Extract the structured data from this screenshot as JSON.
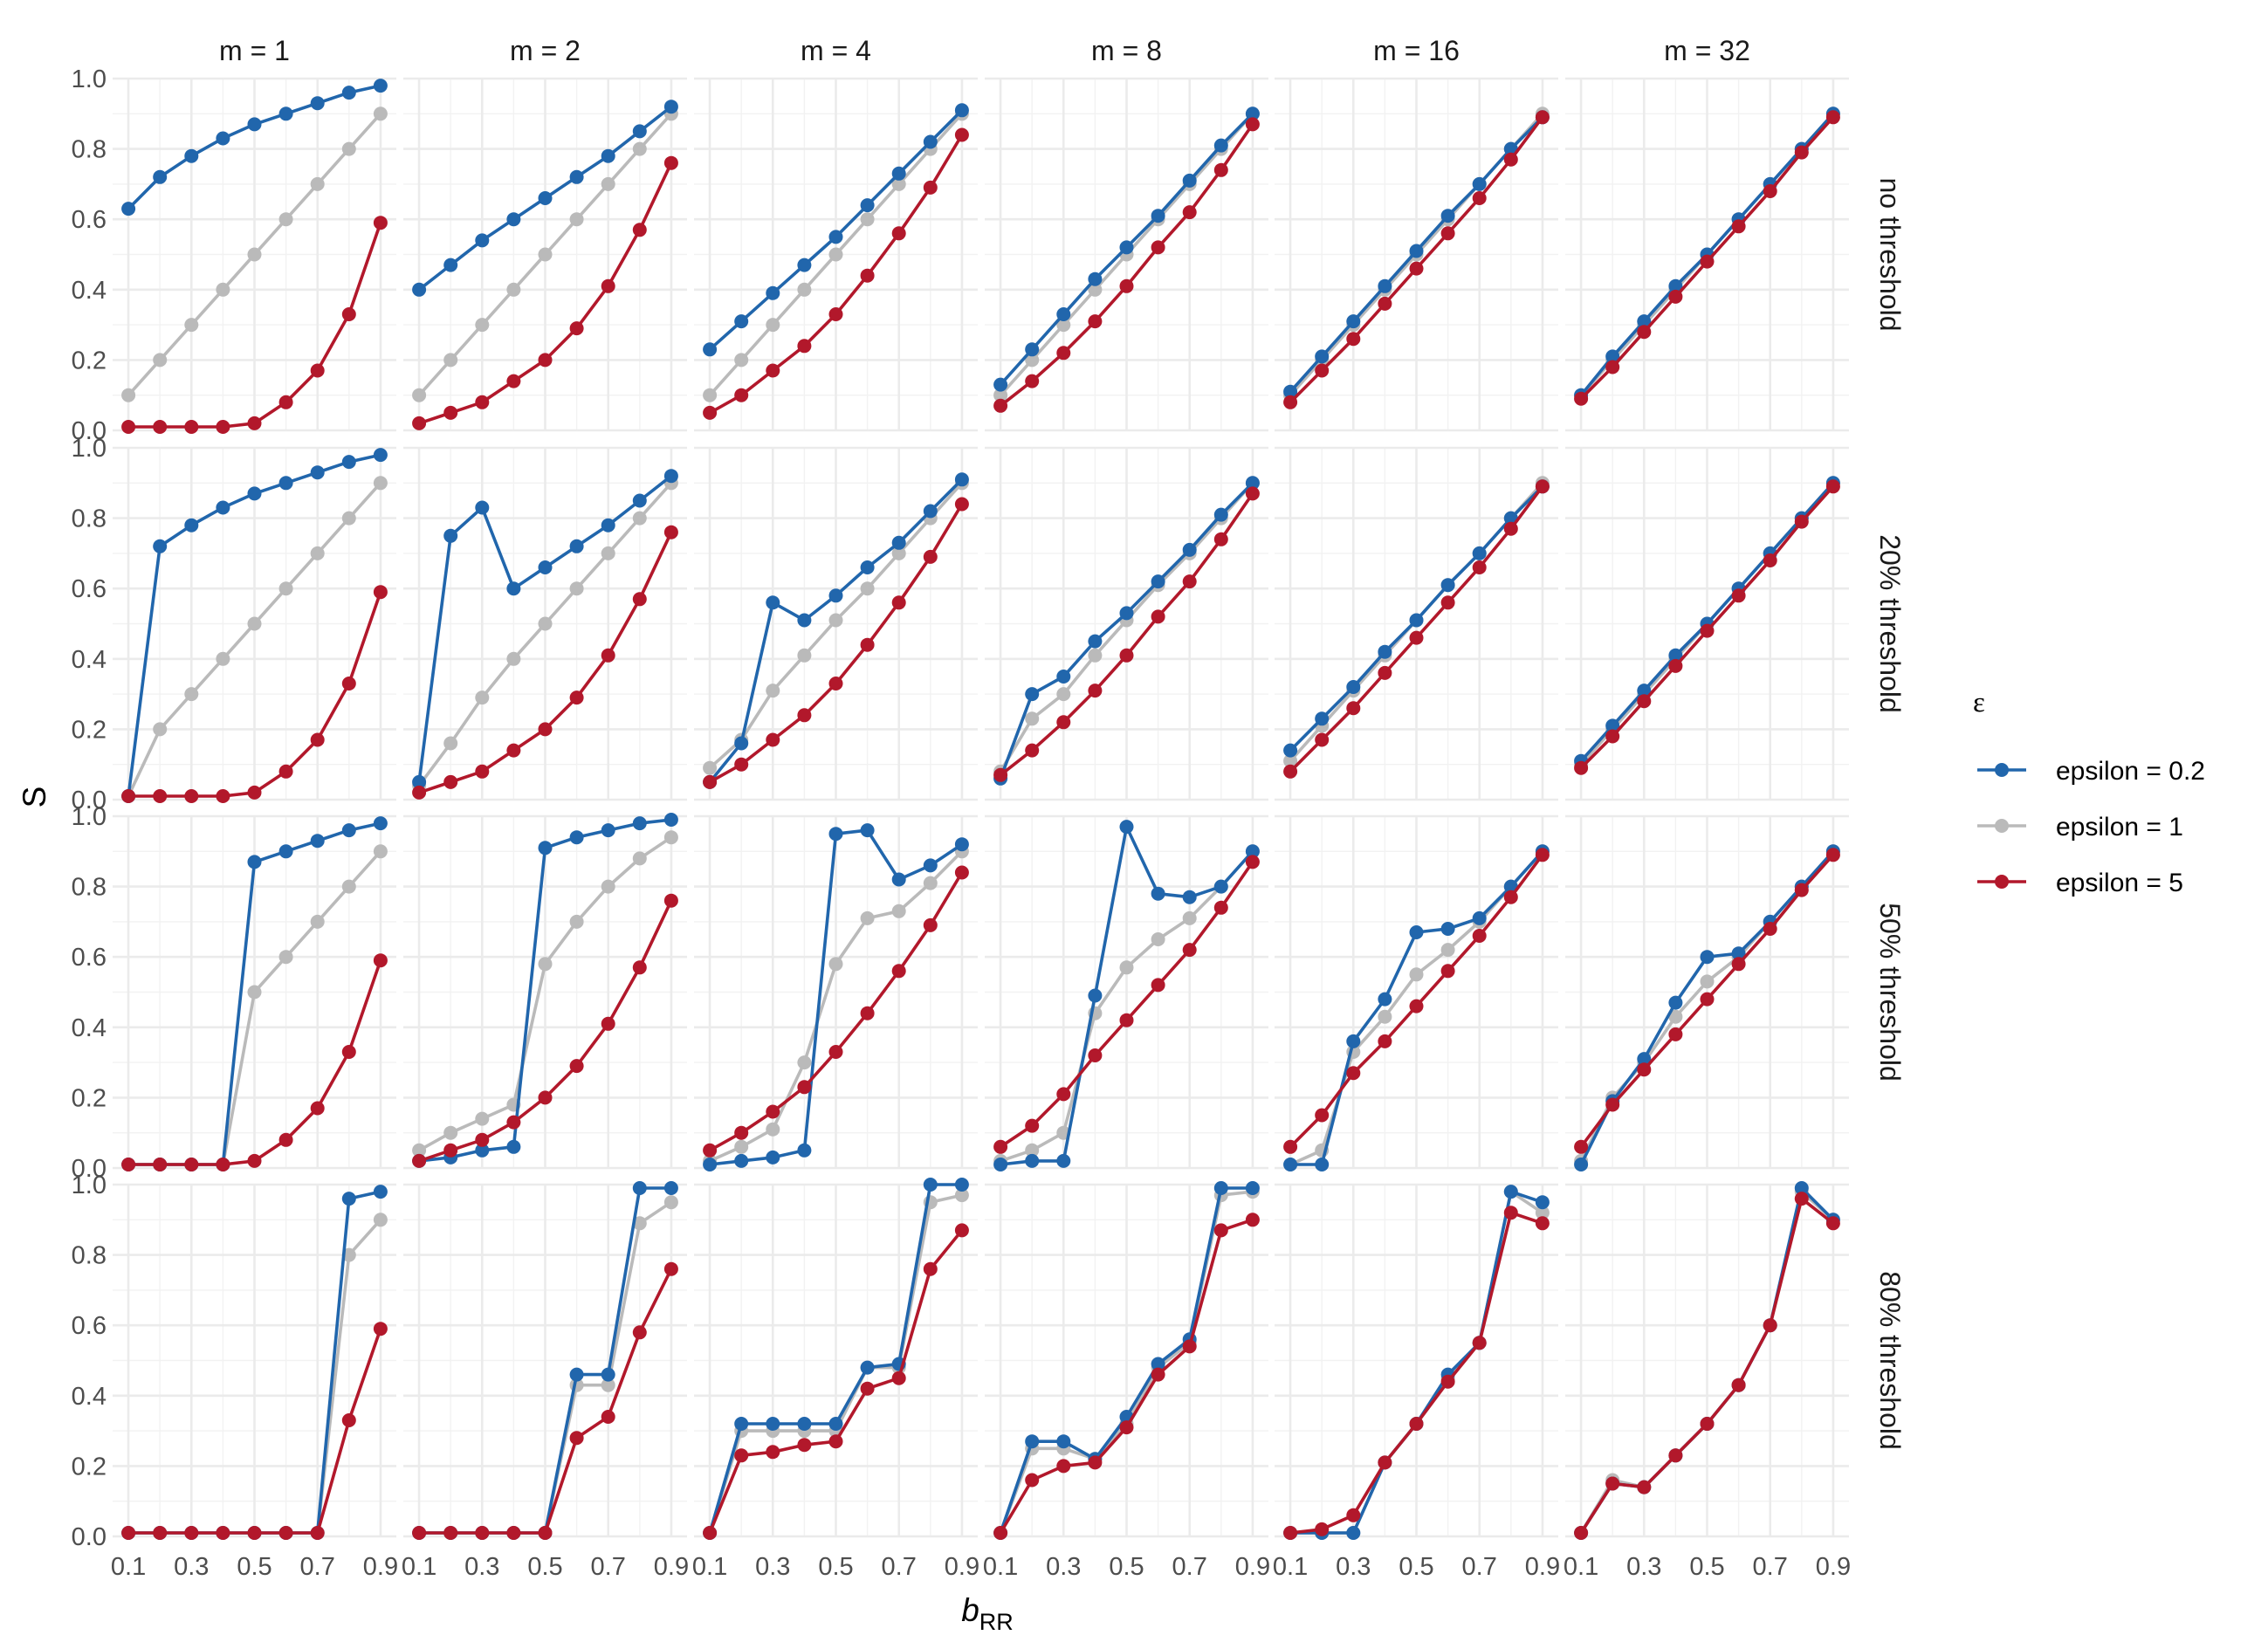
{
  "chart_data": {
    "type": "line",
    "title": "",
    "xlabel": "b",
    "xlabel_subscript": "RR",
    "ylabel": "S",
    "x": [
      0.1,
      0.2,
      0.3,
      0.4,
      0.5,
      0.6,
      0.7,
      0.8,
      0.9
    ],
    "x_ticks": [
      0.1,
      0.3,
      0.5,
      0.7,
      0.9
    ],
    "x_tick_labels": [
      "0.1",
      "0.3",
      "0.5",
      "0.7",
      "0.9"
    ],
    "xlim": [
      0.05,
      0.95
    ],
    "ylim": [
      0,
      1
    ],
    "y_ticks": [
      0,
      0.2,
      0.4,
      0.6,
      0.8,
      1.0
    ],
    "y_tick_labels": [
      "0.0",
      "0.2",
      "0.4",
      "0.6",
      "0.8",
      "1.0"
    ],
    "grid": true,
    "legend": {
      "title": "ε",
      "position": "right",
      "entries": [
        "epsilon = 0.2",
        "epsilon = 1",
        "epsilon = 5"
      ]
    },
    "series_colors": [
      "#2166ac",
      "#bababa",
      "#b2182b"
    ],
    "column_labels": [
      "m = 1",
      "m = 2",
      "m = 4",
      "m = 8",
      "m = 16",
      "m = 32"
    ],
    "row_labels": [
      "no threshold",
      "20% threshold",
      "50% threshold",
      "80% threshold"
    ],
    "panels": [
      [
        {
          "series": [
            [
              0.63,
              0.72,
              0.78,
              0.83,
              0.87,
              0.9,
              0.93,
              0.96,
              0.98
            ],
            [
              0.1,
              0.2,
              0.3,
              0.4,
              0.5,
              0.6,
              0.7,
              0.8,
              0.9
            ],
            [
              0.01,
              0.01,
              0.01,
              0.01,
              0.02,
              0.08,
              0.17,
              0.33,
              0.59
            ]
          ]
        },
        {
          "series": [
            [
              0.4,
              0.47,
              0.54,
              0.6,
              0.66,
              0.72,
              0.78,
              0.85,
              0.92
            ],
            [
              0.1,
              0.2,
              0.3,
              0.4,
              0.5,
              0.6,
              0.7,
              0.8,
              0.9
            ],
            [
              0.02,
              0.05,
              0.08,
              0.14,
              0.2,
              0.29,
              0.41,
              0.57,
              0.76
            ]
          ]
        },
        {
          "series": [
            [
              0.23,
              0.31,
              0.39,
              0.47,
              0.55,
              0.64,
              0.73,
              0.82,
              0.91
            ],
            [
              0.1,
              0.2,
              0.3,
              0.4,
              0.5,
              0.6,
              0.7,
              0.8,
              0.9
            ],
            [
              0.05,
              0.1,
              0.17,
              0.24,
              0.33,
              0.44,
              0.56,
              0.69,
              0.84
            ]
          ]
        },
        {
          "series": [
            [
              0.13,
              0.23,
              0.33,
              0.43,
              0.52,
              0.61,
              0.71,
              0.81,
              0.9
            ],
            [
              0.1,
              0.2,
              0.3,
              0.4,
              0.5,
              0.6,
              0.7,
              0.8,
              0.9
            ],
            [
              0.07,
              0.14,
              0.22,
              0.31,
              0.41,
              0.52,
              0.62,
              0.74,
              0.87
            ]
          ]
        },
        {
          "series": [
            [
              0.11,
              0.21,
              0.31,
              0.41,
              0.51,
              0.61,
              0.7,
              0.8,
              0.89
            ],
            [
              0.1,
              0.2,
              0.3,
              0.4,
              0.5,
              0.6,
              0.7,
              0.8,
              0.9
            ],
            [
              0.08,
              0.17,
              0.26,
              0.36,
              0.46,
              0.56,
              0.66,
              0.77,
              0.89
            ]
          ]
        },
        {
          "series": [
            [
              0.1,
              0.21,
              0.31,
              0.41,
              0.5,
              0.6,
              0.7,
              0.8,
              0.9
            ],
            [
              0.1,
              0.2,
              0.3,
              0.4,
              0.5,
              0.6,
              0.7,
              0.8,
              0.9
            ],
            [
              0.09,
              0.18,
              0.28,
              0.38,
              0.48,
              0.58,
              0.68,
              0.79,
              0.89
            ]
          ]
        }
      ],
      [
        {
          "series": [
            [
              0.01,
              0.72,
              0.78,
              0.83,
              0.87,
              0.9,
              0.93,
              0.96,
              0.98
            ],
            [
              0.01,
              0.2,
              0.3,
              0.4,
              0.5,
              0.6,
              0.7,
              0.8,
              0.9
            ],
            [
              0.01,
              0.01,
              0.01,
              0.01,
              0.02,
              0.08,
              0.17,
              0.33,
              0.59
            ]
          ]
        },
        {
          "series": [
            [
              0.05,
              0.75,
              0.83,
              0.6,
              0.66,
              0.72,
              0.78,
              0.85,
              0.92
            ],
            [
              0.04,
              0.16,
              0.29,
              0.4,
              0.5,
              0.6,
              0.7,
              0.8,
              0.9
            ],
            [
              0.02,
              0.05,
              0.08,
              0.14,
              0.2,
              0.29,
              0.41,
              0.57,
              0.76
            ]
          ]
        },
        {
          "series": [
            [
              0.05,
              0.16,
              0.56,
              0.51,
              0.58,
              0.66,
              0.73,
              0.82,
              0.91
            ],
            [
              0.09,
              0.17,
              0.31,
              0.41,
              0.51,
              0.6,
              0.7,
              0.8,
              0.9
            ],
            [
              0.05,
              0.1,
              0.17,
              0.24,
              0.33,
              0.44,
              0.56,
              0.69,
              0.84
            ]
          ]
        },
        {
          "series": [
            [
              0.06,
              0.3,
              0.35,
              0.45,
              0.53,
              0.62,
              0.71,
              0.81,
              0.9
            ],
            [
              0.08,
              0.23,
              0.3,
              0.41,
              0.51,
              0.61,
              0.7,
              0.8,
              0.9
            ],
            [
              0.07,
              0.14,
              0.22,
              0.31,
              0.41,
              0.52,
              0.62,
              0.74,
              0.87
            ]
          ]
        },
        {
          "series": [
            [
              0.14,
              0.23,
              0.32,
              0.42,
              0.51,
              0.61,
              0.7,
              0.8,
              0.89
            ],
            [
              0.11,
              0.21,
              0.31,
              0.41,
              0.51,
              0.61,
              0.7,
              0.8,
              0.9
            ],
            [
              0.08,
              0.17,
              0.26,
              0.36,
              0.46,
              0.56,
              0.66,
              0.77,
              0.89
            ]
          ]
        },
        {
          "series": [
            [
              0.11,
              0.21,
              0.31,
              0.41,
              0.5,
              0.6,
              0.7,
              0.8,
              0.9
            ],
            [
              0.1,
              0.2,
              0.3,
              0.4,
              0.5,
              0.6,
              0.7,
              0.8,
              0.9
            ],
            [
              0.09,
              0.18,
              0.28,
              0.38,
              0.48,
              0.58,
              0.68,
              0.79,
              0.89
            ]
          ]
        }
      ],
      [
        {
          "series": [
            [
              0.01,
              0.01,
              0.01,
              0.01,
              0.87,
              0.9,
              0.93,
              0.96,
              0.98
            ],
            [
              0.01,
              0.01,
              0.01,
              0.01,
              0.5,
              0.6,
              0.7,
              0.8,
              0.9
            ],
            [
              0.01,
              0.01,
              0.01,
              0.01,
              0.02,
              0.08,
              0.17,
              0.33,
              0.59
            ]
          ]
        },
        {
          "series": [
            [
              0.02,
              0.03,
              0.05,
              0.06,
              0.91,
              0.94,
              0.96,
              0.98,
              0.99
            ],
            [
              0.05,
              0.1,
              0.14,
              0.18,
              0.58,
              0.7,
              0.8,
              0.88,
              0.94
            ],
            [
              0.02,
              0.05,
              0.08,
              0.13,
              0.2,
              0.29,
              0.41,
              0.57,
              0.76
            ]
          ]
        },
        {
          "series": [
            [
              0.01,
              0.02,
              0.03,
              0.05,
              0.95,
              0.96,
              0.82,
              0.86,
              0.92
            ],
            [
              0.02,
              0.06,
              0.11,
              0.3,
              0.58,
              0.71,
              0.73,
              0.81,
              0.9
            ],
            [
              0.05,
              0.1,
              0.16,
              0.23,
              0.33,
              0.44,
              0.56,
              0.69,
              0.84
            ]
          ]
        },
        {
          "series": [
            [
              0.01,
              0.02,
              0.02,
              0.49,
              0.97,
              0.78,
              0.77,
              0.8,
              0.9
            ],
            [
              0.02,
              0.05,
              0.1,
              0.44,
              0.57,
              0.65,
              0.71,
              0.8,
              0.9
            ],
            [
              0.06,
              0.12,
              0.21,
              0.32,
              0.42,
              0.52,
              0.62,
              0.74,
              0.87
            ]
          ]
        },
        {
          "series": [
            [
              0.01,
              0.01,
              0.36,
              0.48,
              0.67,
              0.68,
              0.71,
              0.8,
              0.9
            ],
            [
              0.01,
              0.05,
              0.33,
              0.43,
              0.55,
              0.62,
              0.7,
              0.8,
              0.9
            ],
            [
              0.06,
              0.15,
              0.27,
              0.36,
              0.46,
              0.56,
              0.66,
              0.77,
              0.89
            ]
          ]
        },
        {
          "series": [
            [
              0.01,
              0.19,
              0.31,
              0.47,
              0.6,
              0.61,
              0.7,
              0.8,
              0.9
            ],
            [
              0.02,
              0.2,
              0.3,
              0.43,
              0.53,
              0.6,
              0.7,
              0.8,
              0.9
            ],
            [
              0.06,
              0.18,
              0.28,
              0.38,
              0.48,
              0.58,
              0.68,
              0.79,
              0.89
            ]
          ]
        }
      ],
      [
        {
          "series": [
            [
              0.01,
              0.01,
              0.01,
              0.01,
              0.01,
              0.01,
              0.01,
              0.96,
              0.98
            ],
            [
              0.01,
              0.01,
              0.01,
              0.01,
              0.01,
              0.01,
              0.01,
              0.8,
              0.9
            ],
            [
              0.01,
              0.01,
              0.01,
              0.01,
              0.01,
              0.01,
              0.01,
              0.33,
              0.59
            ]
          ]
        },
        {
          "series": [
            [
              0.01,
              0.01,
              0.01,
              0.01,
              0.01,
              0.46,
              0.46,
              0.99,
              0.99
            ],
            [
              0.01,
              0.01,
              0.01,
              0.01,
              0.01,
              0.43,
              0.43,
              0.89,
              0.95
            ],
            [
              0.01,
              0.01,
              0.01,
              0.01,
              0.01,
              0.28,
              0.34,
              0.58,
              0.76
            ]
          ]
        },
        {
          "series": [
            [
              0.01,
              0.32,
              0.32,
              0.32,
              0.32,
              0.48,
              0.49,
              1.0,
              1.0
            ],
            [
              0.01,
              0.3,
              0.3,
              0.3,
              0.3,
              0.48,
              0.48,
              0.95,
              0.97
            ],
            [
              0.01,
              0.23,
              0.24,
              0.26,
              0.27,
              0.42,
              0.45,
              0.76,
              0.87
            ]
          ]
        },
        {
          "series": [
            [
              0.01,
              0.27,
              0.27,
              0.22,
              0.34,
              0.49,
              0.56,
              0.99,
              0.99
            ],
            [
              0.01,
              0.25,
              0.25,
              0.22,
              0.32,
              0.48,
              0.55,
              0.97,
              0.98
            ],
            [
              0.01,
              0.16,
              0.2,
              0.21,
              0.31,
              0.46,
              0.54,
              0.87,
              0.9
            ]
          ]
        },
        {
          "series": [
            [
              0.01,
              0.01,
              0.01,
              0.21,
              0.32,
              0.46,
              0.55,
              0.98,
              0.95
            ],
            [
              0.01,
              0.01,
              0.01,
              0.21,
              0.32,
              0.45,
              0.55,
              0.98,
              0.92
            ],
            [
              0.01,
              0.02,
              0.06,
              0.21,
              0.32,
              0.44,
              0.55,
              0.92,
              0.89
            ]
          ]
        },
        {
          "series": [
            [
              0.01,
              0.15,
              0.14,
              0.23,
              0.32,
              0.43,
              0.6,
              0.99,
              0.9
            ],
            [
              0.01,
              0.16,
              0.14,
              0.23,
              0.32,
              0.43,
              0.6,
              0.98,
              0.9
            ],
            [
              0.01,
              0.15,
              0.14,
              0.23,
              0.32,
              0.43,
              0.6,
              0.96,
              0.89
            ]
          ]
        }
      ]
    ]
  }
}
